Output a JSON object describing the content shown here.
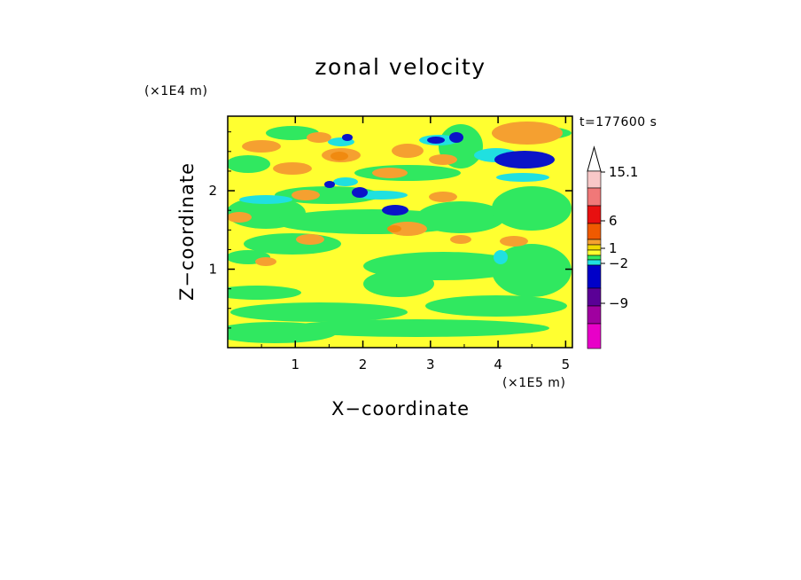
{
  "chart_data": {
    "type": "heatmap",
    "title": "zonal velocity",
    "xlabel": "X−coordinate",
    "ylabel": "Z−coordinate",
    "x_scale_label": "(×1E5 m)",
    "y_scale_label": "(×1E4 m)",
    "time_label": "t=177600 s",
    "x_ticks": [
      "1",
      "2",
      "3",
      "4",
      "5"
    ],
    "x_tick_values": [
      1,
      2,
      3,
      4,
      5
    ],
    "y_ticks": [
      "1",
      "2"
    ],
    "y_tick_values": [
      1,
      2
    ],
    "xlim": [
      0,
      5.1
    ],
    "ylim": [
      0,
      2.95
    ],
    "colorbar": {
      "labels": [
        "15.1",
        "6",
        "1",
        "−2",
        "−9"
      ],
      "label_values": [
        15.1,
        6,
        1,
        -2,
        -9
      ],
      "colors": [
        "#f8c8c8",
        "#f07878",
        "#e81010",
        "#f05a00",
        "#f5a030",
        "#f0d800",
        "#ffff30",
        "#30e860",
        "#20e0e0",
        "#0000c8",
        "#5a0096",
        "#a000a0",
        "#e800c8"
      ]
    },
    "field_colors": {
      "background": "#ffff30",
      "light_yellow": "#f0f020",
      "green": "#30e860",
      "cyan": "#20e0e0",
      "blue": "#0a14c8",
      "orange": "#f5a030",
      "dark_orange": "#f08a10"
    }
  }
}
